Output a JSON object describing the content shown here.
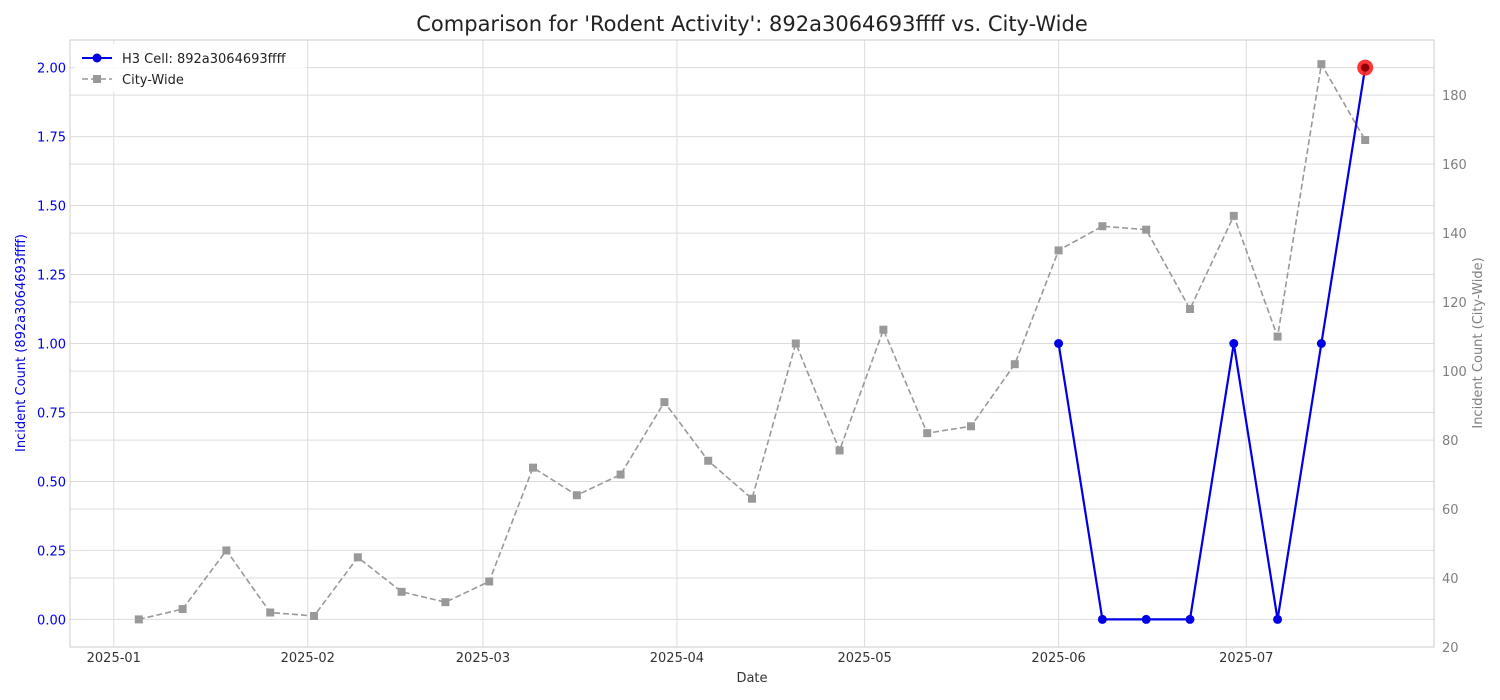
{
  "chart_data": {
    "type": "line",
    "title": "Comparison for 'Rodent Activity': 892a3064693ffff vs. City-Wide",
    "xlabel": "Date",
    "ylabel_left": "Incident Count (892a3064693ffff)",
    "ylabel_right": "Incident Count (City-Wide)",
    "x_ticks": [
      "2025-01",
      "2025-02",
      "2025-03",
      "2025-04",
      "2025-05",
      "2025-06",
      "2025-07"
    ],
    "y_left_ticks": [
      "0.00",
      "0.25",
      "0.50",
      "0.75",
      "1.00",
      "1.25",
      "1.50",
      "1.75",
      "2.00"
    ],
    "y_right_ticks": [
      "20",
      "40",
      "60",
      "80",
      "100",
      "120",
      "140",
      "160",
      "180"
    ],
    "xlim": [
      "2024-12-25",
      "2025-07-31"
    ],
    "ylim_left": [
      -0.1,
      2.1
    ],
    "ylim_right": [
      20,
      196
    ],
    "grid": true,
    "legend_position": "top-left",
    "series": [
      {
        "name": "H3 Cell: 892a3064693ffff",
        "axis": "left",
        "color": "#0000e6",
        "style": "solid",
        "marker": "circle",
        "points": [
          {
            "x": "2025-06-01",
            "y": 1
          },
          {
            "x": "2025-06-08",
            "y": 0
          },
          {
            "x": "2025-06-15",
            "y": 0
          },
          {
            "x": "2025-06-22",
            "y": 0
          },
          {
            "x": "2025-06-29",
            "y": 1
          },
          {
            "x": "2025-07-06",
            "y": 0
          },
          {
            "x": "2025-07-13",
            "y": 1
          },
          {
            "x": "2025-07-20",
            "y": 2
          }
        ]
      },
      {
        "name": "City-Wide",
        "axis": "right",
        "color": "#999999",
        "style": "dashed",
        "marker": "square",
        "points": [
          {
            "x": "2025-01-05",
            "y": 28
          },
          {
            "x": "2025-01-12",
            "y": 31
          },
          {
            "x": "2025-01-19",
            "y": 48
          },
          {
            "x": "2025-01-26",
            "y": 30
          },
          {
            "x": "2025-02-02",
            "y": 29
          },
          {
            "x": "2025-02-09",
            "y": 46
          },
          {
            "x": "2025-02-16",
            "y": 36
          },
          {
            "x": "2025-02-23",
            "y": 33
          },
          {
            "x": "2025-03-02",
            "y": 39
          },
          {
            "x": "2025-03-09",
            "y": 72
          },
          {
            "x": "2025-03-16",
            "y": 64
          },
          {
            "x": "2025-03-23",
            "y": 70
          },
          {
            "x": "2025-03-30",
            "y": 91
          },
          {
            "x": "2025-04-06",
            "y": 74
          },
          {
            "x": "2025-04-13",
            "y": 63
          },
          {
            "x": "2025-04-20",
            "y": 108
          },
          {
            "x": "2025-04-27",
            "y": 77
          },
          {
            "x": "2025-05-04",
            "y": 112
          },
          {
            "x": "2025-05-11",
            "y": 82
          },
          {
            "x": "2025-05-18",
            "y": 84
          },
          {
            "x": "2025-05-25",
            "y": 102
          },
          {
            "x": "2025-06-01",
            "y": 135
          },
          {
            "x": "2025-06-08",
            "y": 142
          },
          {
            "x": "2025-06-15",
            "y": 141
          },
          {
            "x": "2025-06-22",
            "y": 118
          },
          {
            "x": "2025-06-29",
            "y": 145
          },
          {
            "x": "2025-07-06",
            "y": 110
          },
          {
            "x": "2025-07-13",
            "y": 189
          },
          {
            "x": "2025-07-20",
            "y": 167
          }
        ]
      }
    ],
    "highlight": {
      "x": "2025-07-20",
      "y": 2,
      "axis": "left",
      "color": "#ff2020"
    }
  }
}
